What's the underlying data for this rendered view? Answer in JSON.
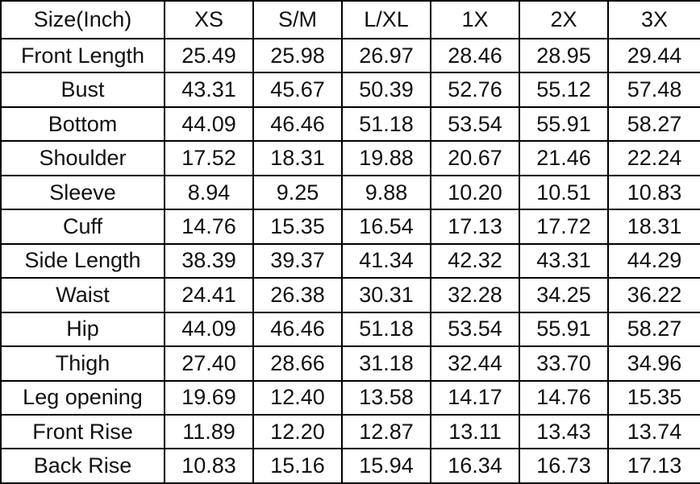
{
  "chart_data": {
    "type": "table",
    "title": "Size(Inch)",
    "columns": [
      "Size(Inch)",
      "XS",
      "S/M",
      "L/XL",
      "1X",
      "2X",
      "3X"
    ],
    "rows": [
      {
        "label": "Front Length",
        "values": [
          "25.49",
          "25.98",
          "26.97",
          "28.46",
          "28.95",
          "29.44"
        ]
      },
      {
        "label": "Bust",
        "values": [
          "43.31",
          "45.67",
          "50.39",
          "52.76",
          "55.12",
          "57.48"
        ]
      },
      {
        "label": "Bottom",
        "values": [
          "44.09",
          "46.46",
          "51.18",
          "53.54",
          "55.91",
          "58.27"
        ]
      },
      {
        "label": "Shoulder",
        "values": [
          "17.52",
          "18.31",
          "19.88",
          "20.67",
          "21.46",
          "22.24"
        ]
      },
      {
        "label": "Sleeve",
        "values": [
          "8.94",
          "9.25",
          "9.88",
          "10.20",
          "10.51",
          "10.83"
        ]
      },
      {
        "label": "Cuff",
        "values": [
          "14.76",
          "15.35",
          "16.54",
          "17.13",
          "17.72",
          "18.31"
        ]
      },
      {
        "label": "Side Length",
        "values": [
          "38.39",
          "39.37",
          "41.34",
          "42.32",
          "43.31",
          "44.29"
        ]
      },
      {
        "label": "Waist",
        "values": [
          "24.41",
          "26.38",
          "30.31",
          "32.28",
          "34.25",
          "36.22"
        ]
      },
      {
        "label": "Hip",
        "values": [
          "44.09",
          "46.46",
          "51.18",
          "53.54",
          "55.91",
          "58.27"
        ]
      },
      {
        "label": "Thigh",
        "values": [
          "27.40",
          "28.66",
          "31.18",
          "32.44",
          "33.70",
          "34.96"
        ]
      },
      {
        "label": "Leg opening",
        "values": [
          "19.69",
          "12.40",
          "13.58",
          "14.17",
          "14.76",
          "15.35"
        ]
      },
      {
        "label": "Front Rise",
        "values": [
          "11.89",
          "12.20",
          "12.87",
          "13.11",
          "13.43",
          "13.74"
        ]
      },
      {
        "label": "Back Rise",
        "values": [
          "10.83",
          "15.16",
          "15.94",
          "16.34",
          "16.73",
          "17.13"
        ]
      }
    ]
  },
  "colors": {
    "border": "#000000",
    "text": "#111111",
    "background": "#ffffff"
  }
}
